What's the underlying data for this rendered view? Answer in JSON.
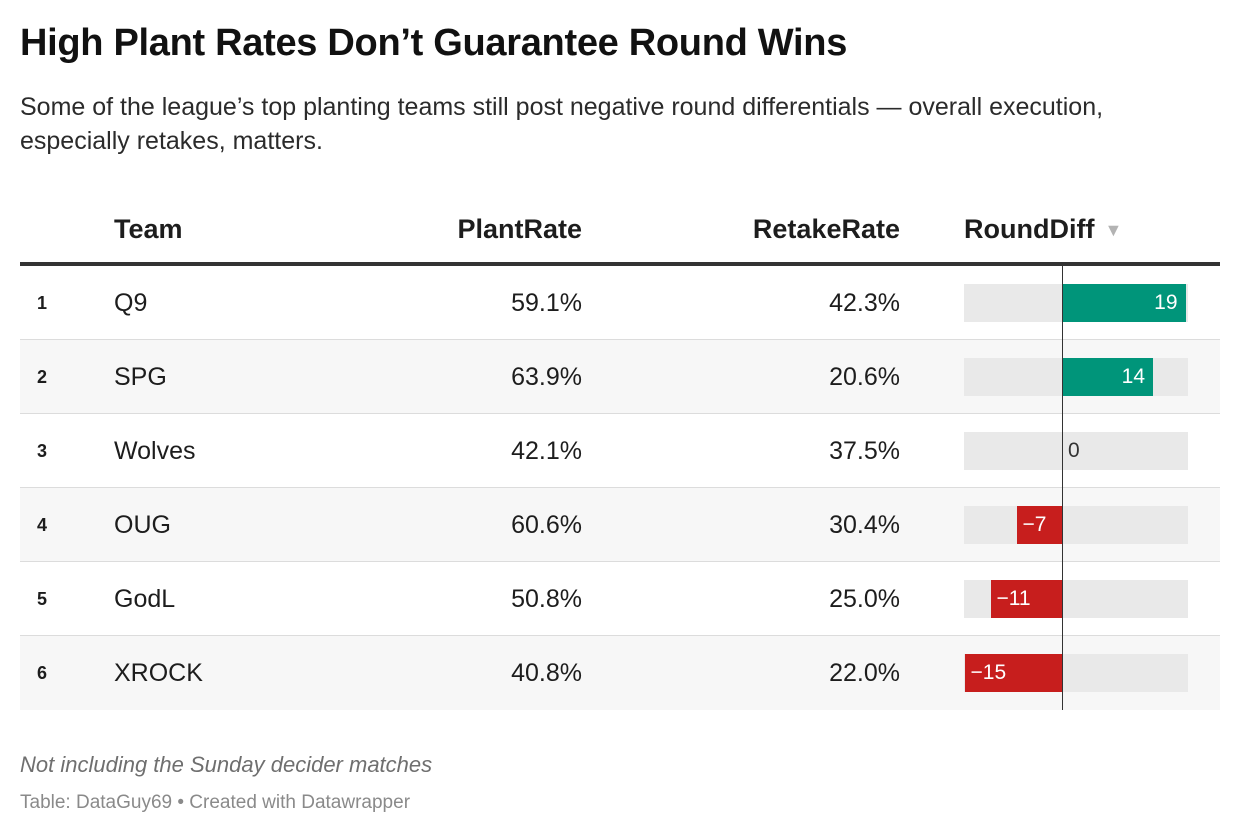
{
  "chart_data": {
    "type": "table",
    "title": "High Plant Rates Don’t Guarantee Round Wins",
    "subtitle": "Some of the league’s top planting teams still post negative round differentials — overall execution, especially retakes, matters.",
    "columns": [
      "Team",
      "PlantRate",
      "RetakeRate",
      "RoundDiff"
    ],
    "sort_indicator": "▼",
    "rows": [
      {
        "rank": "1",
        "team": "Q9",
        "plant_rate": "59.1%",
        "retake_rate": "42.3%",
        "round_diff": 19,
        "round_diff_label": "19"
      },
      {
        "rank": "2",
        "team": "SPG",
        "plant_rate": "63.9%",
        "retake_rate": "20.6%",
        "round_diff": 14,
        "round_diff_label": "14"
      },
      {
        "rank": "3",
        "team": "Wolves",
        "plant_rate": "42.1%",
        "retake_rate": "37.5%",
        "round_diff": 0,
        "round_diff_label": "0"
      },
      {
        "rank": "4",
        "team": "OUG",
        "plant_rate": "60.6%",
        "retake_rate": "30.4%",
        "round_diff": -7,
        "round_diff_label": "−7"
      },
      {
        "rank": "5",
        "team": "GodL",
        "plant_rate": "50.8%",
        "retake_rate": "25.0%",
        "round_diff": -11,
        "round_diff_label": "−11"
      },
      {
        "rank": "6",
        "team": "XROCK",
        "plant_rate": "40.8%",
        "retake_rate": "22.0%",
        "round_diff": -15,
        "round_diff_label": "−15"
      }
    ],
    "round_diff_range": [
      -15,
      19
    ],
    "colors": {
      "positive": "#00957a",
      "negative": "#c71e1d",
      "track": "#e9e9e9"
    },
    "note": "Not including the Sunday decider matches",
    "source": "Table: DataGuy69 • Created with Datawrapper"
  }
}
